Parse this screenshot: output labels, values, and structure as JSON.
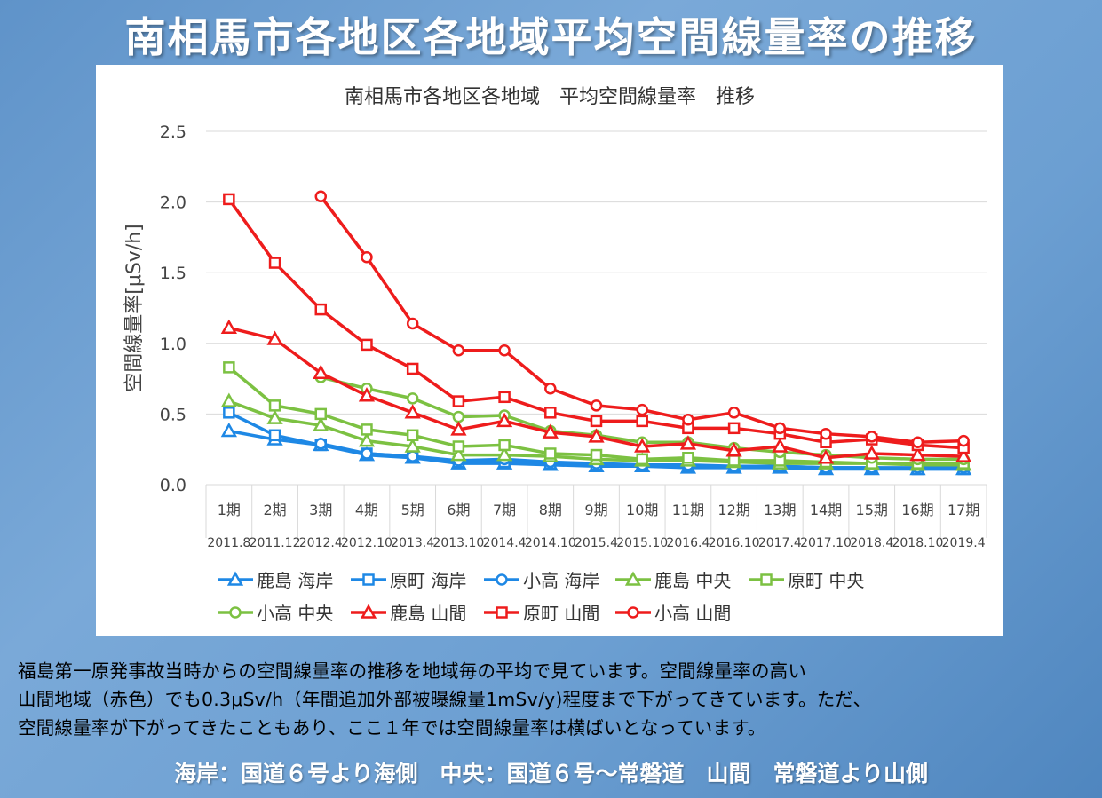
{
  "slide": {
    "title": "南相馬市各地区各地域平均空間線量率の推移",
    "description": [
      "福島第一原発事故当時からの空間線量率の推移を地域毎の平均で見ています。空間線量率の高い",
      "山間地域（赤色）でも0.3μSv/h（年間追加外部被曝線量1mSv/y)程度まで下がってきています。ただ、",
      "空間線量率が下がってきたこともあり、ここ１年では空間線量率は横ばいとなっています。"
    ],
    "footer_note": "海岸：国道６号より海側　中央：国道６号～常磐道　山間　常磐道より山側"
  },
  "chart_data": {
    "type": "line",
    "title": "南相馬市各地区各地域　平均空間線量率　推移",
    "ylabel": "空間線量率[μSv/h]",
    "xlabel": "",
    "ylim": [
      0,
      2.5
    ],
    "yticks": [
      "0.0",
      "0.5",
      "1.0",
      "1.5",
      "2.0",
      "2.5"
    ],
    "grid": true,
    "legend_position": "bottom",
    "categories": [
      "1期",
      "2期",
      "3期",
      "4期",
      "5期",
      "6期",
      "7期",
      "8期",
      "9期",
      "10期",
      "11期",
      "12期",
      "13期",
      "14期",
      "15期",
      "16期",
      "17期"
    ],
    "dates": [
      "2011.8",
      "2011.12",
      "2012.4",
      "2012.10",
      "2013.4",
      "2013.10",
      "2014.4",
      "2014.10",
      "2015.4",
      "2015.10",
      "2016.4",
      "2016.10",
      "2017.4",
      "2017.10",
      "2018.4",
      "2018.10",
      "2019.4"
    ],
    "series": [
      {
        "name": "鹿島 海岸",
        "color": "#1e88e5",
        "marker": "triangle",
        "values": [
          0.38,
          0.32,
          0.28,
          0.21,
          0.19,
          0.15,
          0.15,
          0.14,
          0.13,
          0.13,
          0.12,
          0.12,
          0.12,
          0.11,
          0.11,
          0.11,
          0.11
        ]
      },
      {
        "name": "原町 海岸",
        "color": "#1e88e5",
        "marker": "square",
        "values": [
          0.51,
          0.35,
          0.28,
          0.22,
          0.2,
          0.16,
          0.16,
          0.15,
          0.14,
          0.14,
          0.13,
          0.13,
          0.13,
          0.12,
          0.12,
          0.11,
          0.11
        ]
      },
      {
        "name": "小高 海岸",
        "color": "#1e88e5",
        "marker": "circle",
        "values": [
          null,
          null,
          0.29,
          0.22,
          0.2,
          0.17,
          0.18,
          0.16,
          0.15,
          0.14,
          0.14,
          0.13,
          0.13,
          0.12,
          0.12,
          0.12,
          0.12
        ]
      },
      {
        "name": "鹿島 中央",
        "color": "#7cc142",
        "marker": "triangle",
        "values": [
          0.59,
          0.47,
          0.42,
          0.31,
          0.27,
          0.21,
          0.21,
          0.2,
          0.18,
          0.17,
          0.17,
          0.16,
          0.15,
          0.15,
          0.15,
          0.14,
          0.14
        ]
      },
      {
        "name": "原町 中央",
        "color": "#7cc142",
        "marker": "square",
        "values": [
          0.83,
          0.56,
          0.5,
          0.39,
          0.35,
          0.27,
          0.28,
          0.22,
          0.21,
          0.18,
          0.19,
          0.17,
          0.17,
          0.16,
          0.15,
          0.15,
          0.15
        ]
      },
      {
        "name": "小高 中央",
        "color": "#7cc142",
        "marker": "circle",
        "values": [
          null,
          null,
          0.76,
          0.68,
          0.61,
          0.48,
          0.49,
          0.38,
          0.35,
          0.3,
          0.3,
          0.26,
          0.23,
          0.21,
          0.19,
          0.18,
          0.18
        ]
      },
      {
        "name": "鹿島 山間",
        "color": "#ee1c1c",
        "marker": "triangle",
        "values": [
          1.11,
          1.03,
          0.79,
          0.63,
          0.51,
          0.39,
          0.45,
          0.37,
          0.34,
          0.27,
          0.29,
          0.24,
          0.27,
          0.19,
          0.22,
          0.21,
          0.2
        ]
      },
      {
        "name": "原町 山間",
        "color": "#ee1c1c",
        "marker": "square",
        "values": [
          2.02,
          1.57,
          1.24,
          0.99,
          0.82,
          0.59,
          0.62,
          0.51,
          0.45,
          0.45,
          0.4,
          0.4,
          0.36,
          0.3,
          0.32,
          0.28,
          0.26
        ]
      },
      {
        "name": "小高 山間",
        "color": "#ee1c1c",
        "marker": "circle",
        "values": [
          null,
          null,
          2.04,
          1.61,
          1.14,
          0.95,
          0.95,
          0.68,
          0.56,
          0.53,
          0.46,
          0.51,
          0.4,
          0.36,
          0.34,
          0.3,
          0.31
        ]
      }
    ]
  }
}
